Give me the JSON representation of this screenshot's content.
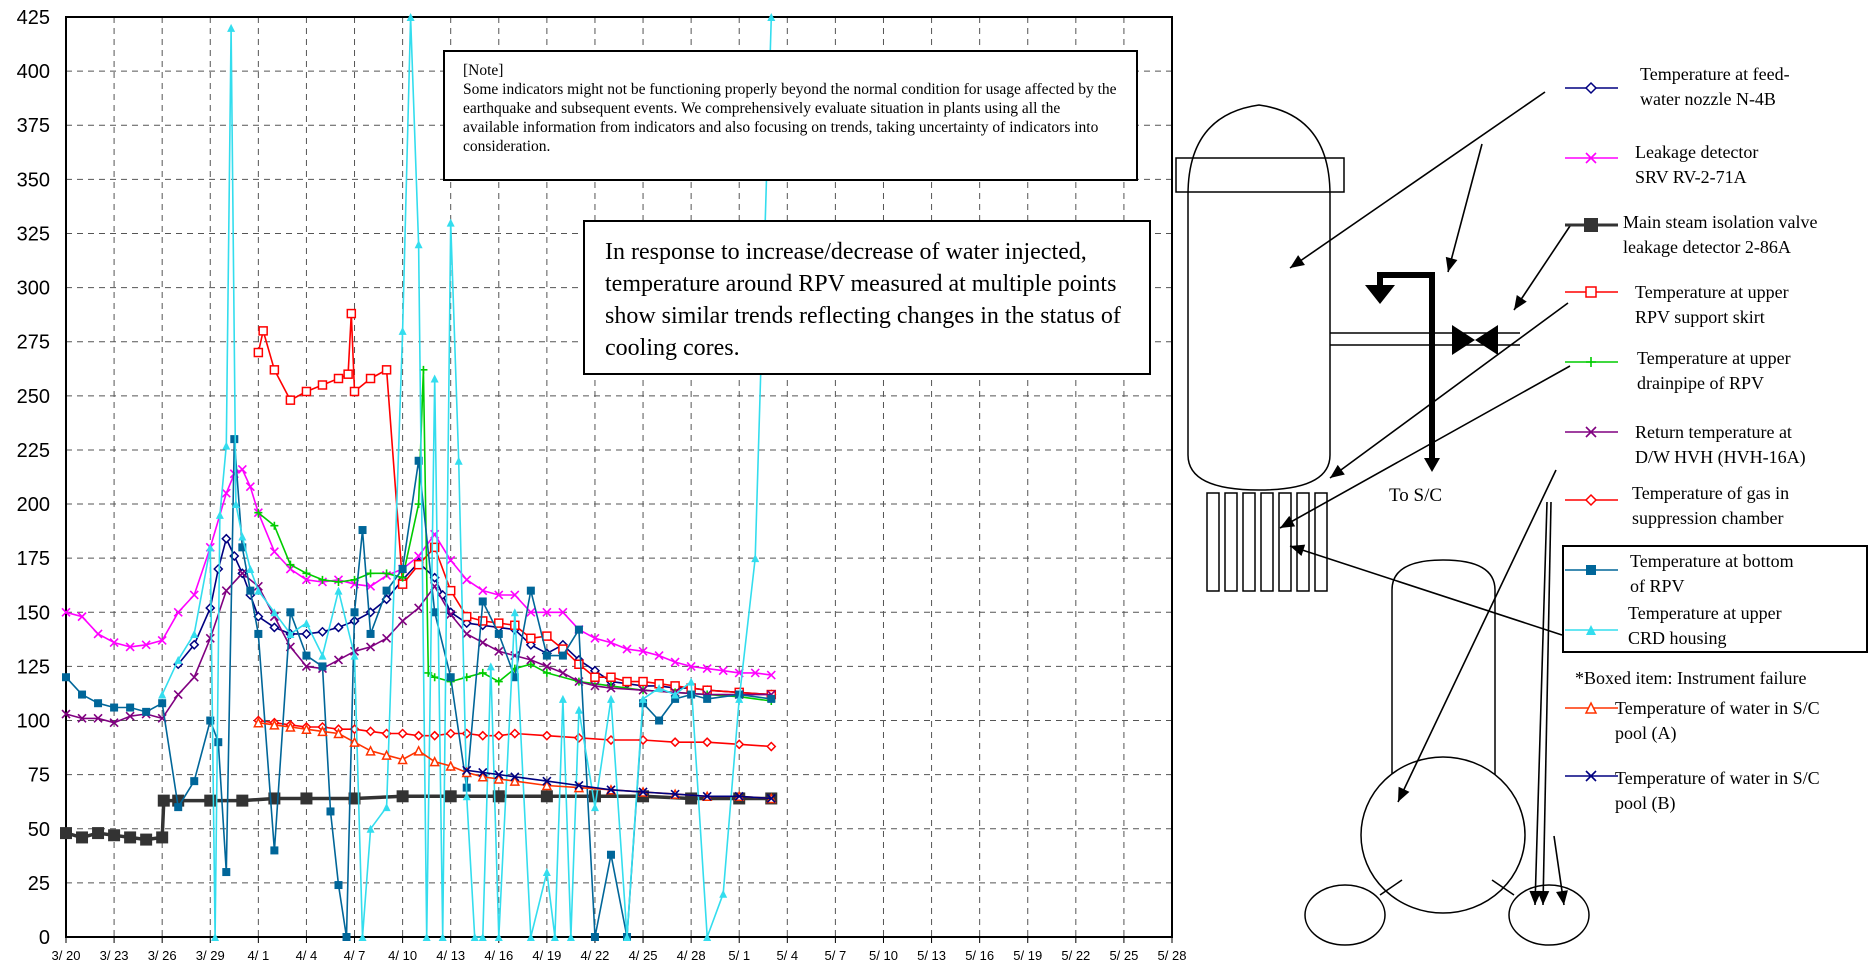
{
  "chart_data": {
    "type": "line",
    "ylim": [
      0,
      425
    ],
    "yticks": [
      0,
      25,
      50,
      75,
      100,
      125,
      150,
      175,
      200,
      225,
      250,
      275,
      300,
      325,
      350,
      375,
      400,
      425
    ],
    "xlim": [
      "3/20",
      "5/28"
    ],
    "xticks": [
      "3/ 20",
      "3/ 23",
      "3/ 26",
      "3/ 29",
      "4/ 1",
      "4/ 4",
      "4/ 7",
      "4/ 10",
      "4/ 13",
      "4/ 16",
      "4/ 19",
      "4/ 22",
      "4/ 25",
      "4/ 28",
      "5/ 1",
      "5/ 4",
      "5/ 7",
      "5/ 10",
      "5/ 13",
      "5/ 16",
      "5/ 19",
      "5/ 22",
      "5/ 25",
      "5/ 28"
    ],
    "grid": true,
    "legend_position": "right",
    "series": [
      {
        "name": "Temperature at feed-water nozzle N-4B",
        "color": "#000080",
        "marker": "diamond",
        "x": [
          27,
          28,
          29,
          29.5,
          30,
          30.5,
          31,
          31.5,
          32,
          33,
          34,
          35,
          36,
          37,
          38,
          39,
          40,
          41,
          42,
          43,
          43.5,
          44,
          45,
          46,
          47,
          48,
          49,
          50,
          51,
          52,
          53,
          54,
          55,
          56,
          57,
          58,
          59,
          60,
          62,
          64
        ],
        "y": [
          126,
          135,
          152,
          170,
          184,
          176,
          168,
          158,
          148,
          143,
          140,
          140,
          141,
          143,
          146,
          150,
          156,
          165,
          173,
          166,
          158,
          150,
          145,
          144,
          143,
          142,
          135,
          131,
          135,
          128,
          123,
          118,
          117,
          116,
          116,
          115,
          115,
          114,
          113,
          112
        ]
      },
      {
        "name": "Leakage detector SRV RV-2-71A",
        "color": "#ff00ff",
        "marker": "x",
        "x": [
          20,
          21,
          22,
          23,
          24,
          25,
          26,
          27,
          28,
          29,
          30,
          30.5,
          31,
          31.5,
          32,
          33,
          34,
          35,
          36,
          37,
          38,
          39,
          40,
          41,
          42,
          43,
          44,
          45,
          46,
          47,
          48,
          49,
          50,
          51,
          52,
          53,
          54,
          55,
          56,
          57,
          58,
          59,
          60,
          61,
          62,
          63,
          64
        ],
        "y": [
          150,
          148,
          140,
          136,
          134,
          135,
          137,
          150,
          158,
          180,
          205,
          214,
          216,
          208,
          196,
          178,
          170,
          165,
          164,
          165,
          163,
          162,
          167,
          170,
          176,
          186,
          174,
          165,
          160,
          158,
          158,
          150,
          150,
          150,
          142,
          138,
          136,
          133,
          132,
          130,
          127,
          125,
          124,
          123,
          122,
          122,
          121
        ]
      },
      {
        "name": "Main steam isolation valve leakage detector 2-86A",
        "color": "#333333",
        "marker": "square",
        "x": [
          20,
          21,
          22,
          23,
          24,
          25,
          26,
          26.1,
          27,
          29,
          31,
          33,
          35,
          38,
          41,
          44,
          47,
          50,
          53,
          56,
          59,
          62,
          64
        ],
        "y": [
          48,
          46,
          48,
          47,
          46,
          45,
          46,
          63,
          63,
          63,
          63,
          64,
          64,
          64,
          65,
          65,
          65,
          65,
          65,
          65,
          64,
          64,
          64
        ]
      },
      {
        "name": "Temperature at upper RPV support skirt",
        "color": "#ff0000",
        "marker": "square-open",
        "x": [
          32,
          32.3,
          33,
          34,
          35,
          36,
          37,
          37.6,
          37.8,
          38,
          39,
          40,
          41,
          42,
          43,
          44,
          45,
          46,
          47,
          48,
          49,
          50,
          51,
          52,
          53,
          54,
          55,
          56,
          57,
          58,
          59,
          60,
          62,
          64
        ],
        "y": [
          270,
          280,
          262,
          248,
          252,
          255,
          258,
          260,
          288,
          252,
          258,
          262,
          163,
          172,
          180,
          160,
          148,
          146,
          145,
          144,
          138,
          139,
          133,
          126,
          120,
          120,
          118,
          118,
          117,
          116,
          115,
          114,
          113,
          112
        ]
      },
      {
        "name": "Temperature at upper drainpipe of RPV",
        "color": "#00cc00",
        "marker": "plus",
        "x": [
          32,
          33,
          34,
          35,
          36,
          37,
          38,
          39,
          40,
          41,
          42,
          42.3,
          42.6,
          43,
          44,
          45,
          46,
          47,
          48,
          49,
          50,
          52,
          54,
          56,
          58,
          60,
          62,
          64
        ],
        "y": [
          196,
          190,
          172,
          168,
          165,
          164,
          165,
          168,
          168,
          166,
          200,
          262,
          122,
          120,
          118,
          120,
          122,
          118,
          124,
          126,
          122,
          118,
          116,
          114,
          113,
          112,
          111,
          109
        ]
      },
      {
        "name": "Return temperature at D/W HVH (HVH-16A)",
        "color": "#800080",
        "marker": "x",
        "x": [
          20,
          21,
          22,
          23,
          24,
          25,
          26,
          27,
          28,
          29,
          30,
          31,
          32,
          33,
          34,
          35,
          36,
          37,
          38,
          39,
          40,
          41,
          42,
          43,
          44,
          45,
          46,
          47,
          48,
          49,
          50,
          51,
          52,
          53,
          54,
          56,
          58,
          60,
          62,
          64
        ],
        "y": [
          103,
          101,
          101,
          99,
          102,
          103,
          101,
          112,
          120,
          138,
          160,
          168,
          162,
          148,
          134,
          125,
          124,
          128,
          132,
          134,
          138,
          146,
          152,
          162,
          149,
          140,
          136,
          132,
          130,
          128,
          125,
          122,
          118,
          116,
          115,
          114,
          113,
          112,
          112,
          112
        ]
      },
      {
        "name": "Temperature of gas in suppression chamber",
        "color": "#ff0000",
        "marker": "diamond",
        "x": [
          32,
          33,
          34,
          35,
          36,
          37,
          38,
          39,
          40,
          41,
          42,
          43,
          44,
          45,
          46,
          47,
          48,
          50,
          52,
          54,
          56,
          58,
          60,
          62,
          64
        ],
        "y": [
          100,
          99,
          98,
          97,
          97,
          96,
          96,
          95,
          94,
          94,
          93,
          93,
          94,
          94,
          93,
          93,
          94,
          93,
          92,
          91,
          91,
          90,
          90,
          89,
          88
        ]
      },
      {
        "name": "Temperature at bottom of RPV",
        "color": "#006699",
        "marker": "square",
        "x": [
          20,
          21,
          22,
          23,
          24,
          25,
          26,
          27,
          28,
          29,
          29.5,
          30,
          30.5,
          31,
          31.5,
          32,
          33,
          34,
          35,
          36,
          36.5,
          37,
          37.5,
          38,
          38.5,
          39,
          40,
          41,
          42,
          43,
          44,
          45,
          46,
          47,
          48,
          49,
          50,
          51,
          52,
          53,
          54,
          55,
          56,
          57,
          58,
          59,
          60,
          62,
          64
        ],
        "y": [
          120,
          112,
          108,
          106,
          106,
          104,
          108,
          60,
          72,
          100,
          90,
          30,
          230,
          180,
          160,
          140,
          40,
          150,
          130,
          125,
          58,
          24,
          0,
          150,
          188,
          140,
          160,
          170,
          220,
          150,
          120,
          69,
          155,
          140,
          120,
          160,
          130,
          130,
          142,
          0,
          38,
          0,
          108,
          100,
          110,
          112,
          110,
          112,
          110
        ]
      },
      {
        "name": "Temperature at upper CRD housing",
        "color": "#33ddee",
        "marker": "triangle",
        "x": [
          26,
          27,
          28,
          29,
          29.3,
          29.6,
          30,
          30.3,
          30.6,
          31,
          31.5,
          32,
          33,
          34,
          35,
          36,
          37,
          38,
          38.5,
          39,
          40,
          41,
          41.5,
          42,
          42.5,
          43,
          43.5,
          44,
          44.5,
          45,
          45.5,
          46,
          46.5,
          47,
          48,
          49,
          50,
          50.5,
          51,
          51.5,
          52,
          53,
          54,
          55,
          56,
          57,
          58,
          59,
          60,
          61,
          62,
          63,
          64
        ],
        "y": [
          112,
          128,
          140,
          180,
          0,
          195,
          227,
          420,
          200,
          185,
          170,
          160,
          150,
          140,
          145,
          130,
          160,
          130,
          0,
          50,
          60,
          280,
          425,
          320,
          0,
          258,
          0,
          330,
          220,
          65,
          0,
          0,
          125,
          0,
          150,
          0,
          30,
          0,
          110,
          0,
          105,
          60,
          110,
          0,
          110,
          115,
          112,
          118,
          0,
          20,
          110,
          175,
          425
        ]
      },
      {
        "name": "Temperature of water in S/C pool (A)",
        "color": "#ff3300",
        "marker": "triangle-open",
        "x": [
          32,
          33,
          34,
          35,
          36,
          37,
          38,
          39,
          40,
          41,
          42,
          43,
          44,
          45,
          46,
          47,
          48,
          50,
          52,
          54,
          56,
          58,
          60,
          62,
          64
        ],
        "y": [
          99,
          98,
          97,
          96,
          95,
          94,
          90,
          86,
          84,
          82,
          86,
          81,
          79,
          76,
          74,
          73,
          72,
          70,
          69,
          68,
          67,
          66,
          65,
          65,
          64
        ]
      },
      {
        "name": "Temperature of water in S/C pool (B)",
        "color": "#000080",
        "marker": "x",
        "x": [
          45,
          46,
          47,
          48,
          50,
          52,
          54,
          56,
          58,
          60,
          62,
          64
        ],
        "y": [
          77,
          76,
          75,
          74,
          72,
          70,
          68,
          67,
          66,
          65,
          65,
          64
        ]
      }
    ]
  },
  "note": {
    "title": "[Note]",
    "body": "Some indicators might not be functioning properly beyond the normal condition for usage affected by the earthquake and subsequent events. We comprehensively evaluate situation in plants using all the available information from indicators and also focusing on trends, taking uncertainty of indicators into consideration."
  },
  "callout": "In response to increase/decrease of water injected, temperature around RPV measured at multiple points show similar trends reflecting changes in the status of cooling cores.",
  "diagram": {
    "to_sc_label": "To S/C"
  },
  "legend": {
    "items": [
      {
        "line1": "Temperature at feed-",
        "line2": "water nozzle N-4B",
        "color": "#000080",
        "marker": "diamond"
      },
      {
        "line1": "Leakage detector",
        "line2": "SRV RV-2-71A",
        "color": "#ff00ff",
        "marker": "x"
      },
      {
        "line1": "Main steam isolation valve",
        "line2": "leakage detector 2-86A",
        "color": "#333333",
        "marker": "square"
      },
      {
        "line1": "Temperature at upper",
        "line2": "RPV support skirt",
        "color": "#ff0000",
        "marker": "square-open"
      },
      {
        "line1": "Temperature at upper",
        "line2": "drainpipe of RPV",
        "color": "#00cc00",
        "marker": "plus"
      },
      {
        "line1": "Return temperature at",
        "line2": "D/W HVH (HVH-16A)",
        "color": "#800080",
        "marker": "x"
      },
      {
        "line1": "Temperature of gas in",
        "line2": "suppression chamber",
        "color": "#ff0000",
        "marker": "diamond"
      },
      {
        "line1": "Temperature at bottom",
        "line2": "of RPV",
        "color": "#006699",
        "marker": "square"
      },
      {
        "line1": "Temperature at upper",
        "line2": "CRD housing",
        "color": "#33ddee",
        "marker": "triangle"
      },
      {
        "line1": "Temperature of water in S/C",
        "line2": "pool (A)",
        "color": "#ff3300",
        "marker": "triangle-open"
      },
      {
        "line1": "Temperature of water in S/C",
        "line2": "pool (B)",
        "color": "#000080",
        "marker": "x"
      }
    ],
    "boxed_note": "*Boxed item: Instrument failure"
  }
}
